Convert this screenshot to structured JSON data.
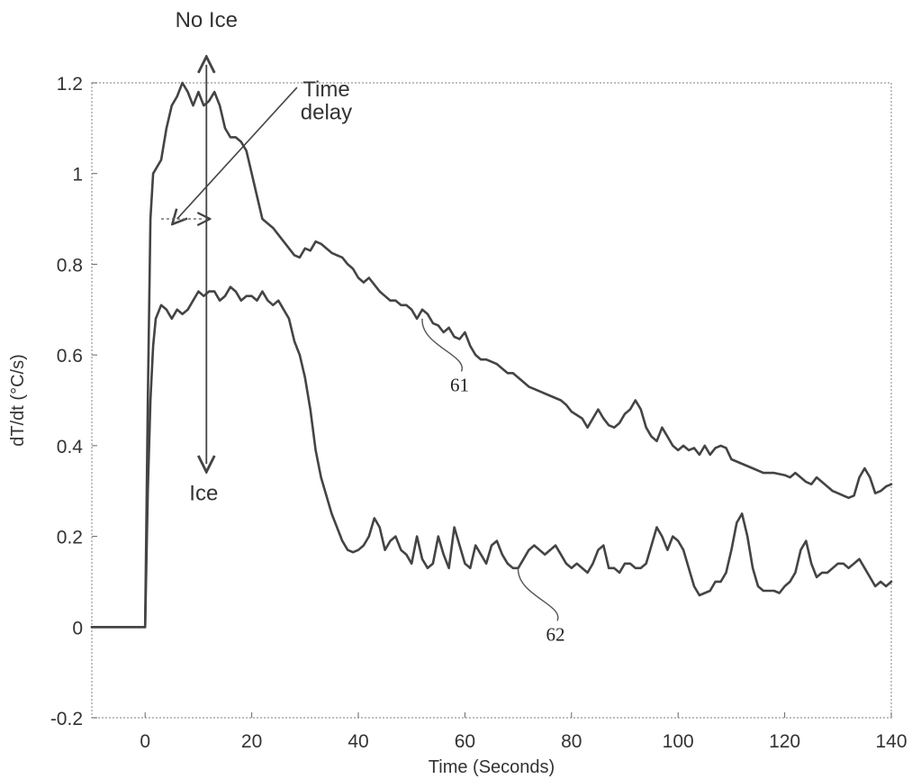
{
  "chart_data": {
    "type": "line",
    "xlabel": "Time (Seconds)",
    "ylabel": "dT/dt (°C/s)",
    "xlim": [
      -10,
      140
    ],
    "ylim": [
      -0.2,
      1.2
    ],
    "x_ticks": [
      0,
      20,
      40,
      60,
      80,
      100,
      120,
      140
    ],
    "x_tick_labels": [
      "0",
      "20",
      "40",
      "60",
      "80",
      "100",
      "120",
      "140"
    ],
    "y_ticks": [
      -0.2,
      0,
      0.2,
      0.4,
      0.6,
      0.8,
      1.0,
      1.2
    ],
    "y_tick_labels": [
      "-0.2",
      "0",
      "0.2",
      "0.4",
      "0.6",
      "0.8",
      "1",
      "1.2"
    ],
    "grid": false,
    "series": [
      {
        "label": "61",
        "color": "#444444",
        "points": [
          [
            -10,
            0
          ],
          [
            -5,
            0
          ],
          [
            0,
            0
          ],
          [
            0.5,
            0.5
          ],
          [
            1,
            0.9
          ],
          [
            1.5,
            1.0
          ],
          [
            3,
            1.03
          ],
          [
            4,
            1.1
          ],
          [
            5,
            1.15
          ],
          [
            6,
            1.17
          ],
          [
            7,
            1.2
          ],
          [
            8,
            1.18
          ],
          [
            9,
            1.15
          ],
          [
            10,
            1.18
          ],
          [
            11,
            1.15
          ],
          [
            12,
            1.16
          ],
          [
            13,
            1.18
          ],
          [
            14,
            1.15
          ],
          [
            15,
            1.1
          ],
          [
            16,
            1.08
          ],
          [
            17,
            1.08
          ],
          [
            18,
            1.07
          ],
          [
            19,
            1.05
          ],
          [
            20,
            1.0
          ],
          [
            21,
            0.95
          ],
          [
            22,
            0.9
          ],
          [
            24,
            0.88
          ],
          [
            26,
            0.85
          ],
          [
            28,
            0.82
          ],
          [
            29,
            0.815
          ],
          [
            30,
            0.835
          ],
          [
            31,
            0.83
          ],
          [
            32,
            0.85
          ],
          [
            33,
            0.845
          ],
          [
            34,
            0.835
          ],
          [
            35,
            0.825
          ],
          [
            36,
            0.82
          ],
          [
            37,
            0.815
          ],
          [
            38,
            0.8
          ],
          [
            39,
            0.79
          ],
          [
            40,
            0.77
          ],
          [
            41,
            0.76
          ],
          [
            42,
            0.77
          ],
          [
            43,
            0.755
          ],
          [
            44,
            0.74
          ],
          [
            45,
            0.73
          ],
          [
            46,
            0.72
          ],
          [
            47,
            0.72
          ],
          [
            48,
            0.71
          ],
          [
            49,
            0.71
          ],
          [
            50,
            0.7
          ],
          [
            51,
            0.68
          ],
          [
            52,
            0.7
          ],
          [
            53,
            0.69
          ],
          [
            54,
            0.67
          ],
          [
            55,
            0.665
          ],
          [
            56,
            0.65
          ],
          [
            57,
            0.66
          ],
          [
            58,
            0.64
          ],
          [
            59,
            0.635
          ],
          [
            60,
            0.65
          ],
          [
            61,
            0.62
          ],
          [
            62,
            0.6
          ],
          [
            63,
            0.59
          ],
          [
            64,
            0.59
          ],
          [
            65,
            0.585
          ],
          [
            66,
            0.58
          ],
          [
            67,
            0.57
          ],
          [
            68,
            0.56
          ],
          [
            69,
            0.56
          ],
          [
            70,
            0.55
          ],
          [
            72,
            0.53
          ],
          [
            74,
            0.52
          ],
          [
            76,
            0.51
          ],
          [
            78,
            0.5
          ],
          [
            79,
            0.49
          ],
          [
            80,
            0.475
          ],
          [
            82,
            0.46
          ],
          [
            83,
            0.44
          ],
          [
            84,
            0.46
          ],
          [
            85,
            0.48
          ],
          [
            86,
            0.46
          ],
          [
            87,
            0.445
          ],
          [
            88,
            0.44
          ],
          [
            89,
            0.45
          ],
          [
            90,
            0.47
          ],
          [
            91,
            0.48
          ],
          [
            92,
            0.5
          ],
          [
            93,
            0.48
          ],
          [
            94,
            0.44
          ],
          [
            95,
            0.42
          ],
          [
            96,
            0.41
          ],
          [
            97,
            0.44
          ],
          [
            98,
            0.42
          ],
          [
            99,
            0.4
          ],
          [
            100,
            0.39
          ],
          [
            101,
            0.4
          ],
          [
            102,
            0.39
          ],
          [
            103,
            0.395
          ],
          [
            104,
            0.38
          ],
          [
            105,
            0.4
          ],
          [
            106,
            0.38
          ],
          [
            107,
            0.395
          ],
          [
            108,
            0.4
          ],
          [
            109,
            0.395
          ],
          [
            110,
            0.37
          ],
          [
            112,
            0.36
          ],
          [
            114,
            0.35
          ],
          [
            116,
            0.34
          ],
          [
            118,
            0.34
          ],
          [
            120,
            0.335
          ],
          [
            121,
            0.33
          ],
          [
            122,
            0.34
          ],
          [
            123,
            0.33
          ],
          [
            124,
            0.32
          ],
          [
            125,
            0.315
          ],
          [
            126,
            0.33
          ],
          [
            127,
            0.32
          ],
          [
            128,
            0.31
          ],
          [
            129,
            0.3
          ],
          [
            130,
            0.295
          ],
          [
            131,
            0.29
          ],
          [
            132,
            0.285
          ],
          [
            133,
            0.29
          ],
          [
            134,
            0.33
          ],
          [
            135,
            0.35
          ],
          [
            136,
            0.33
          ],
          [
            137,
            0.295
          ],
          [
            138,
            0.3
          ],
          [
            139,
            0.31
          ],
          [
            140,
            0.315
          ]
        ]
      },
      {
        "label": "62",
        "color": "#444444",
        "points": [
          [
            -10,
            0
          ],
          [
            -5,
            0
          ],
          [
            0,
            0
          ],
          [
            0.5,
            0.3
          ],
          [
            1,
            0.5
          ],
          [
            1.5,
            0.62
          ],
          [
            2,
            0.68
          ],
          [
            3,
            0.71
          ],
          [
            4,
            0.7
          ],
          [
            5,
            0.68
          ],
          [
            6,
            0.7
          ],
          [
            7,
            0.69
          ],
          [
            8,
            0.7
          ],
          [
            9,
            0.72
          ],
          [
            10,
            0.74
          ],
          [
            11,
            0.73
          ],
          [
            12,
            0.74
          ],
          [
            13,
            0.74
          ],
          [
            14,
            0.72
          ],
          [
            15,
            0.73
          ],
          [
            16,
            0.75
          ],
          [
            17,
            0.74
          ],
          [
            18,
            0.72
          ],
          [
            19,
            0.73
          ],
          [
            20,
            0.73
          ],
          [
            21,
            0.72
          ],
          [
            22,
            0.74
          ],
          [
            23,
            0.72
          ],
          [
            24,
            0.71
          ],
          [
            25,
            0.72
          ],
          [
            26,
            0.7
          ],
          [
            27,
            0.68
          ],
          [
            28,
            0.63
          ],
          [
            29,
            0.6
          ],
          [
            30,
            0.55
          ],
          [
            31,
            0.48
          ],
          [
            32,
            0.39
          ],
          [
            33,
            0.33
          ],
          [
            34,
            0.29
          ],
          [
            35,
            0.25
          ],
          [
            36,
            0.22
          ],
          [
            37,
            0.19
          ],
          [
            38,
            0.17
          ],
          [
            39,
            0.165
          ],
          [
            40,
            0.17
          ],
          [
            41,
            0.18
          ],
          [
            42,
            0.2
          ],
          [
            43,
            0.24
          ],
          [
            44,
            0.22
          ],
          [
            45,
            0.17
          ],
          [
            46,
            0.19
          ],
          [
            47,
            0.2
          ],
          [
            48,
            0.17
          ],
          [
            49,
            0.16
          ],
          [
            50,
            0.14
          ],
          [
            51,
            0.2
          ],
          [
            52,
            0.15
          ],
          [
            53,
            0.13
          ],
          [
            54,
            0.14
          ],
          [
            55,
            0.2
          ],
          [
            56,
            0.16
          ],
          [
            57,
            0.13
          ],
          [
            58,
            0.22
          ],
          [
            59,
            0.18
          ],
          [
            60,
            0.14
          ],
          [
            61,
            0.13
          ],
          [
            62,
            0.18
          ],
          [
            63,
            0.16
          ],
          [
            64,
            0.14
          ],
          [
            65,
            0.18
          ],
          [
            66,
            0.19
          ],
          [
            67,
            0.16
          ],
          [
            68,
            0.14
          ],
          [
            69,
            0.13
          ],
          [
            70,
            0.13
          ],
          [
            71,
            0.15
          ],
          [
            72,
            0.17
          ],
          [
            73,
            0.18
          ],
          [
            74,
            0.17
          ],
          [
            75,
            0.16
          ],
          [
            76,
            0.17
          ],
          [
            77,
            0.18
          ],
          [
            78,
            0.16
          ],
          [
            79,
            0.14
          ],
          [
            80,
            0.13
          ],
          [
            81,
            0.14
          ],
          [
            82,
            0.13
          ],
          [
            83,
            0.12
          ],
          [
            84,
            0.14
          ],
          [
            85,
            0.17
          ],
          [
            86,
            0.18
          ],
          [
            87,
            0.13
          ],
          [
            88,
            0.13
          ],
          [
            89,
            0.12
          ],
          [
            90,
            0.14
          ],
          [
            91,
            0.14
          ],
          [
            92,
            0.13
          ],
          [
            93,
            0.13
          ],
          [
            94,
            0.14
          ],
          [
            95,
            0.18
          ],
          [
            96,
            0.22
          ],
          [
            97,
            0.2
          ],
          [
            98,
            0.17
          ],
          [
            99,
            0.2
          ],
          [
            100,
            0.19
          ],
          [
            101,
            0.17
          ],
          [
            102,
            0.13
          ],
          [
            103,
            0.09
          ],
          [
            104,
            0.07
          ],
          [
            105,
            0.075
          ],
          [
            106,
            0.08
          ],
          [
            107,
            0.1
          ],
          [
            108,
            0.1
          ],
          [
            109,
            0.12
          ],
          [
            110,
            0.17
          ],
          [
            111,
            0.23
          ],
          [
            112,
            0.25
          ],
          [
            113,
            0.2
          ],
          [
            114,
            0.13
          ],
          [
            115,
            0.09
          ],
          [
            116,
            0.08
          ],
          [
            117,
            0.08
          ],
          [
            118,
            0.08
          ],
          [
            119,
            0.075
          ],
          [
            120,
            0.09
          ],
          [
            121,
            0.1
          ],
          [
            122,
            0.12
          ],
          [
            123,
            0.17
          ],
          [
            124,
            0.19
          ],
          [
            125,
            0.14
          ],
          [
            126,
            0.11
          ],
          [
            127,
            0.12
          ],
          [
            128,
            0.12
          ],
          [
            129,
            0.13
          ],
          [
            130,
            0.14
          ],
          [
            131,
            0.14
          ],
          [
            132,
            0.13
          ],
          [
            133,
            0.14
          ],
          [
            134,
            0.15
          ],
          [
            135,
            0.13
          ],
          [
            136,
            0.11
          ],
          [
            137,
            0.09
          ],
          [
            138,
            0.1
          ],
          [
            139,
            0.09
          ],
          [
            140,
            0.1
          ]
        ]
      }
    ],
    "annotations": [
      {
        "text": "No Ice",
        "kind": "vertical-double-arrow",
        "x": 11.5,
        "y_from": 1.24,
        "y_to": 0.36
      },
      {
        "text": "Ice",
        "kind": "label",
        "x": 11,
        "y": 0.28
      },
      {
        "text": "Time",
        "kind": "label",
        "x": 34,
        "y": 1.17
      },
      {
        "text": "delay",
        "kind": "label",
        "x": 34,
        "y": 1.12
      },
      {
        "kind": "pointer-arrow",
        "x_from": 28.5,
        "y_from": 1.19,
        "x_to": 6,
        "y_to": 0.9
      },
      {
        "kind": "dashed-interval",
        "x_from": 3,
        "x_to": 11,
        "y": 0.9
      },
      {
        "text": "61",
        "kind": "callout",
        "x": 59,
        "y": 0.52,
        "target_x": 52,
        "target_y": 0.68
      },
      {
        "text": "62",
        "kind": "callout",
        "x": 77,
        "y": -0.03,
        "target_x": 70,
        "target_y": 0.13
      }
    ]
  }
}
